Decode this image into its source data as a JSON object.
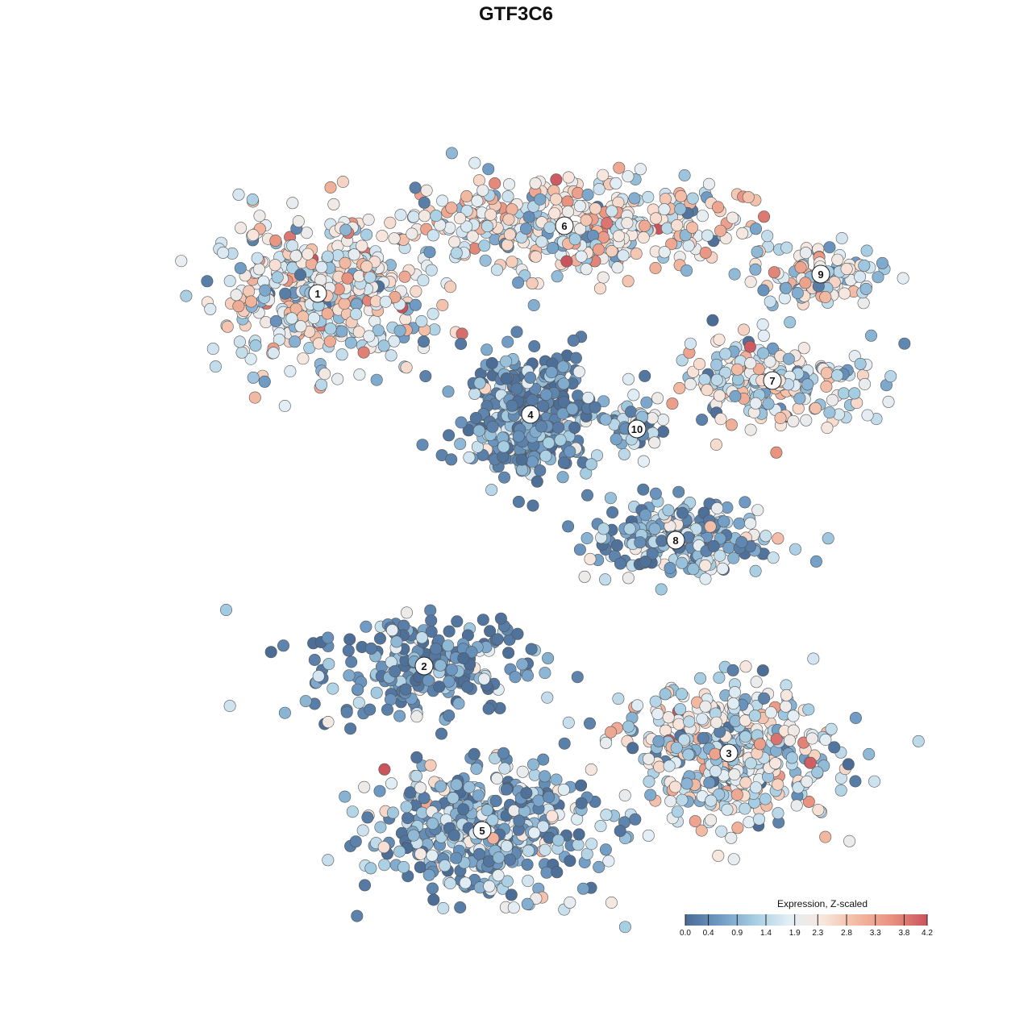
{
  "chart_data": {
    "type": "scatter",
    "title": "GTF3C6",
    "xlabel": "",
    "ylabel": "",
    "grid": false,
    "legend_position": "bottom-right",
    "colorbar": {
      "title": "Expression, Z-scaled",
      "min": 0.0,
      "max": 4.2,
      "ticks": [
        0.0,
        0.4,
        0.9,
        1.4,
        1.9,
        2.3,
        2.8,
        3.3,
        3.8,
        4.2
      ],
      "tick_labels": [
        "0.0",
        "0.4",
        "0.9",
        "1.4",
        "1.9",
        "2.3",
        "2.8",
        "3.3",
        "3.8",
        "4.2"
      ],
      "colors": [
        "#4a6b94",
        "#6f9bc4",
        "#a6cde2",
        "#e3eef5",
        "#f8e6dc",
        "#f2b8a0",
        "#e8917f",
        "#c9545d"
      ]
    },
    "clusters": [
      {
        "label": "1",
        "x": -4.1,
        "y": 4.6,
        "level": 1.9,
        "spread": [
          2.0,
          1.3
        ]
      },
      {
        "label": "2",
        "x": -1.9,
        "y": -3.1,
        "level": 0.4,
        "spread": [
          2.2,
          1.0
        ]
      },
      {
        "label": "3",
        "x": 4.4,
        "y": -4.9,
        "level": 1.7,
        "spread": [
          2.0,
          1.3
        ]
      },
      {
        "label": "4",
        "x": 0.3,
        "y": 2.1,
        "level": 0.3,
        "spread": [
          1.3,
          1.2
        ]
      },
      {
        "label": "5",
        "x": -0.7,
        "y": -6.5,
        "level": 0.9,
        "spread": [
          2.1,
          1.2
        ]
      },
      {
        "label": "6",
        "x": 1.0,
        "y": 6.0,
        "level": 2.1,
        "spread": [
          3.4,
          0.9
        ]
      },
      {
        "label": "7",
        "x": 5.3,
        "y": 2.8,
        "level": 1.8,
        "spread": [
          2.0,
          0.8
        ]
      },
      {
        "label": "8",
        "x": 3.3,
        "y": -0.5,
        "level": 0.9,
        "spread": [
          1.6,
          0.8
        ]
      },
      {
        "label": "9",
        "x": 6.3,
        "y": 5.0,
        "level": 1.9,
        "spread": [
          1.2,
          0.6
        ]
      },
      {
        "label": "10",
        "x": 2.5,
        "y": 1.8,
        "level": 0.8,
        "spread": [
          0.4,
          0.4
        ]
      }
    ]
  }
}
